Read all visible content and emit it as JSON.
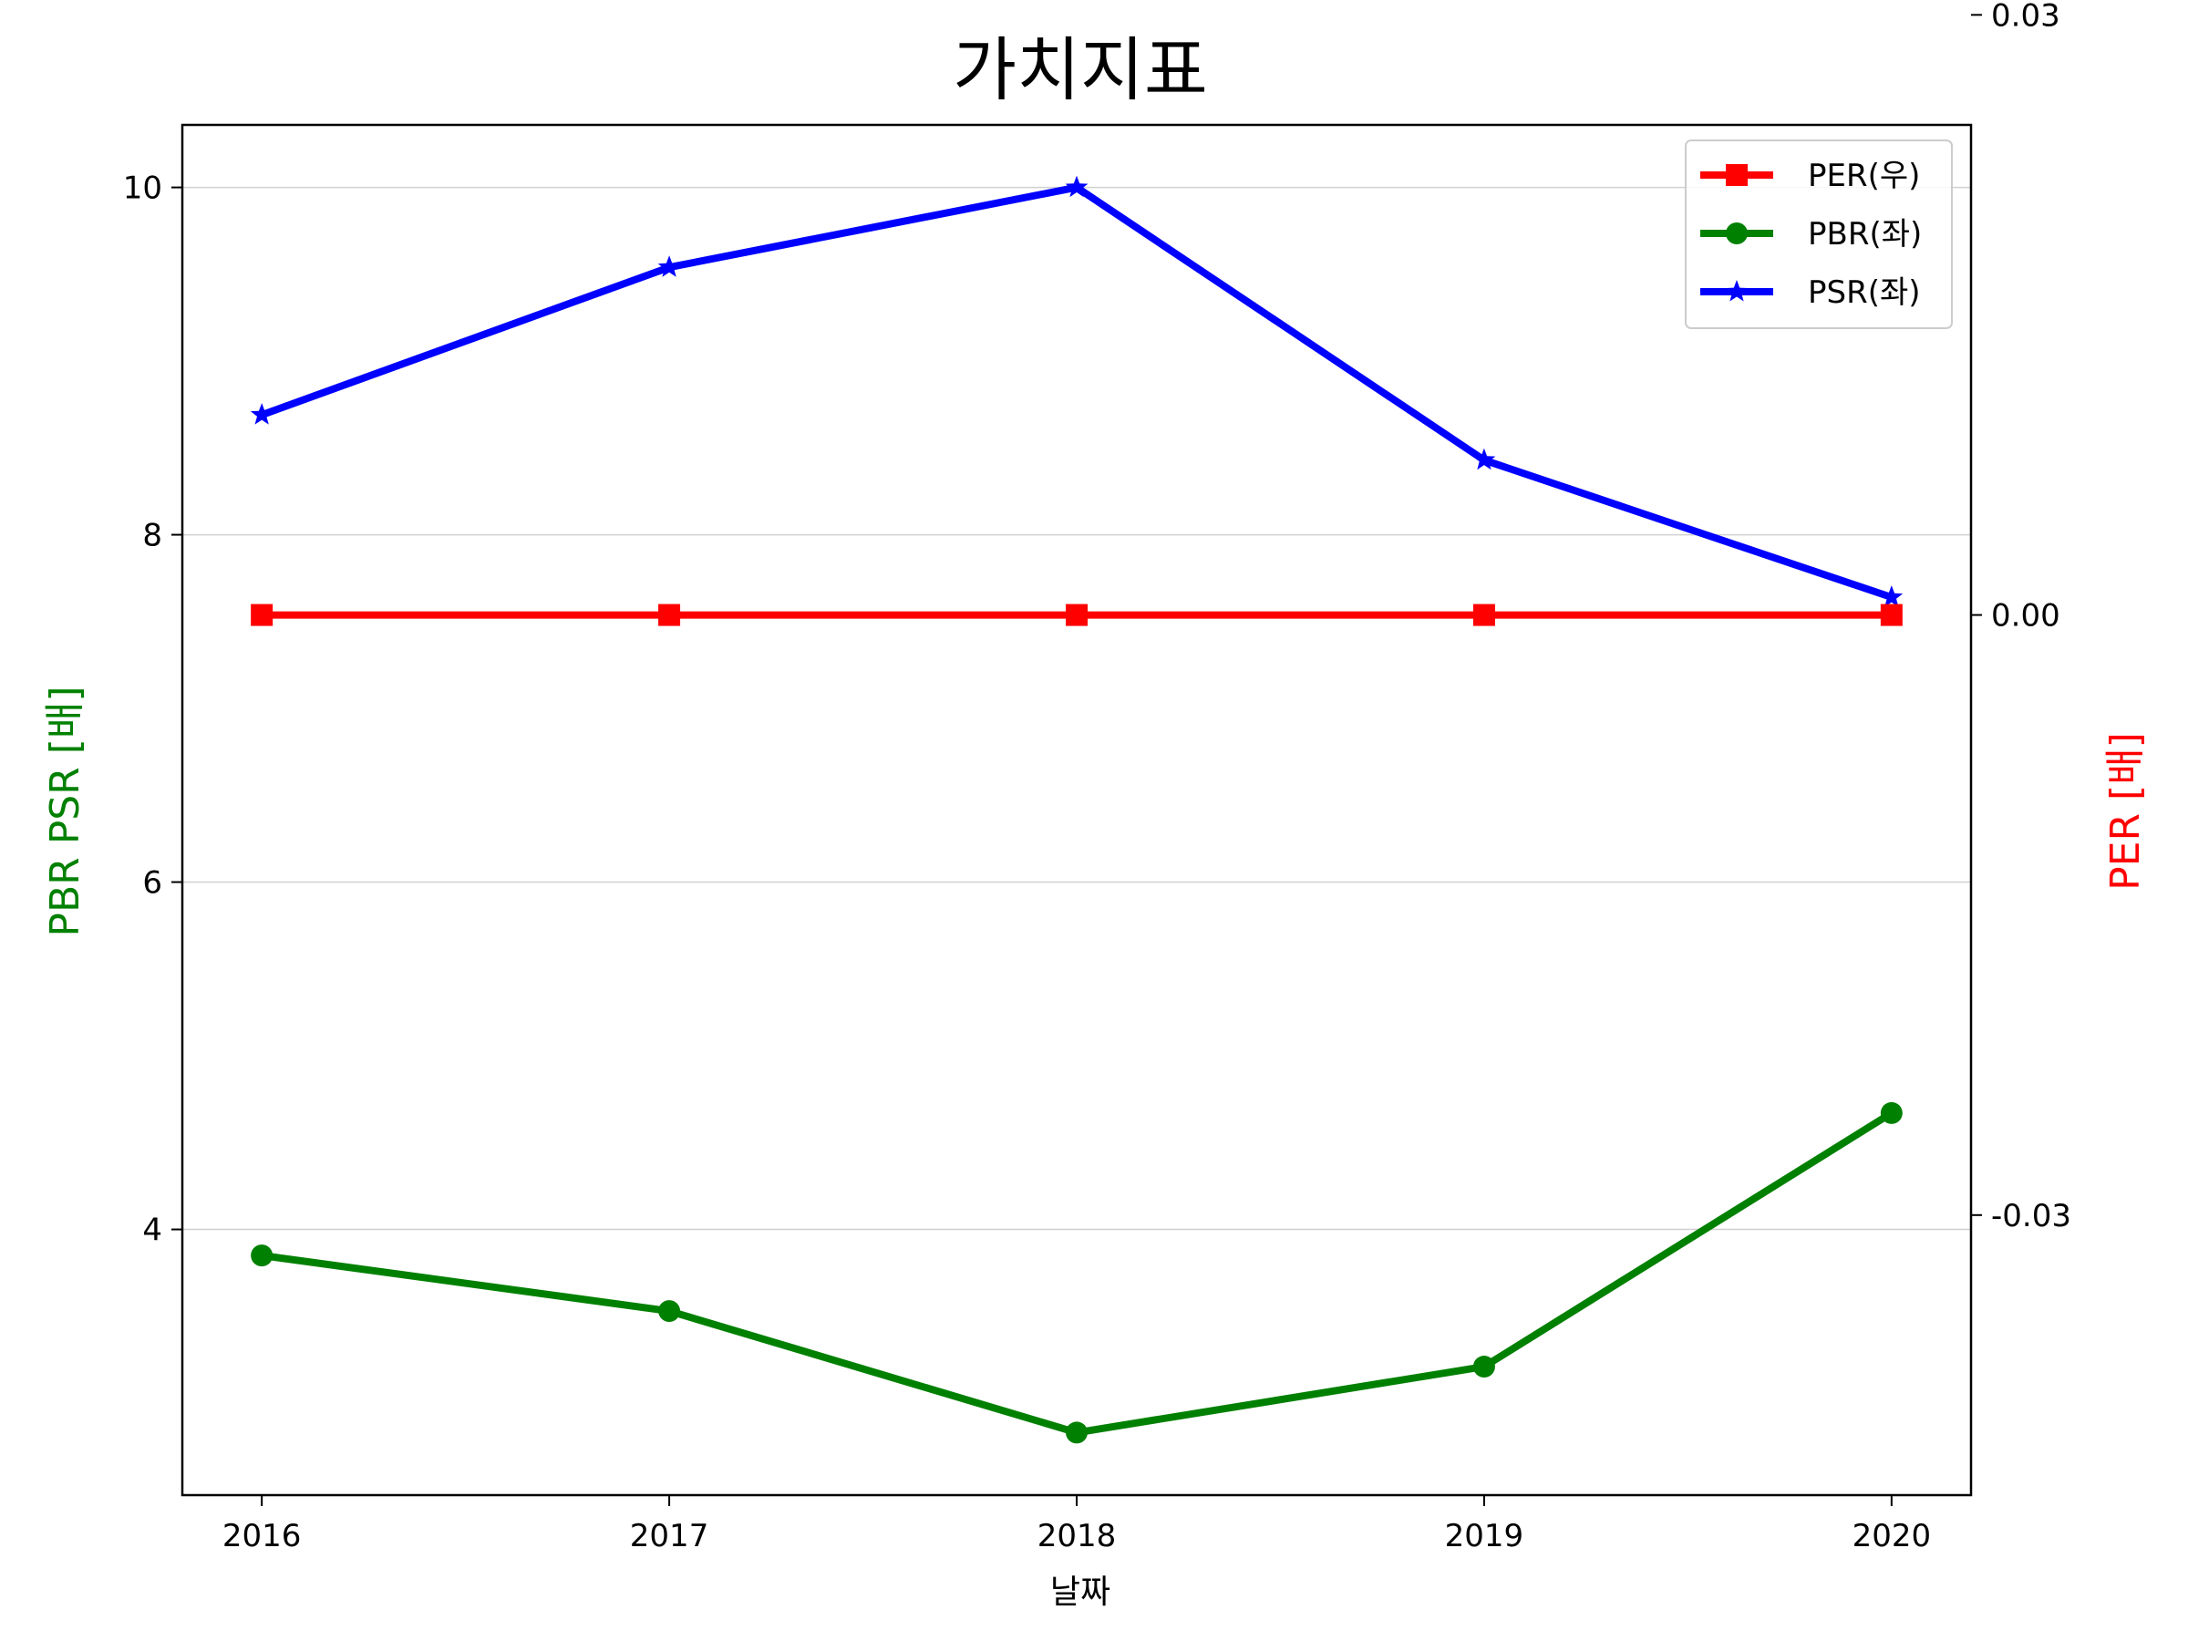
{
  "chart_data": {
    "type": "line",
    "title": "가치지표",
    "xlabel": "날짜",
    "ylabel_left": "PBR PSR [배]",
    "ylabel_right": "PER [배]",
    "x": [
      2016,
      2017,
      2018,
      2019,
      2020
    ],
    "x_ticks": [
      "2016",
      "2017",
      "2018",
      "2019",
      "2020"
    ],
    "ylim_left": [
      2.47,
      10.36
    ],
    "yticks_left": [
      "4",
      "6",
      "8",
      "10"
    ],
    "ylim_right": [
      -0.044,
      0.0245
    ],
    "yticks_right": [
      "-0.03",
      "0.00",
      "0.03"
    ],
    "grid": "horizontal (left axis)",
    "legend_position": "top-right",
    "series": [
      {
        "name": "PER(우)",
        "axis": "right",
        "color": "#ff0000",
        "marker": "square",
        "values": [
          0.0,
          0.0,
          0.0,
          0.0,
          0.0
        ]
      },
      {
        "name": "PBR(좌)",
        "axis": "left",
        "color": "#008000",
        "marker": "circle",
        "values": [
          3.85,
          3.53,
          2.83,
          3.21,
          4.67
        ]
      },
      {
        "name": "PSR(좌)",
        "axis": "left",
        "color": "#0000ff",
        "marker": "star",
        "values": [
          8.69,
          9.54,
          10.0,
          8.43,
          7.64
        ]
      }
    ]
  }
}
